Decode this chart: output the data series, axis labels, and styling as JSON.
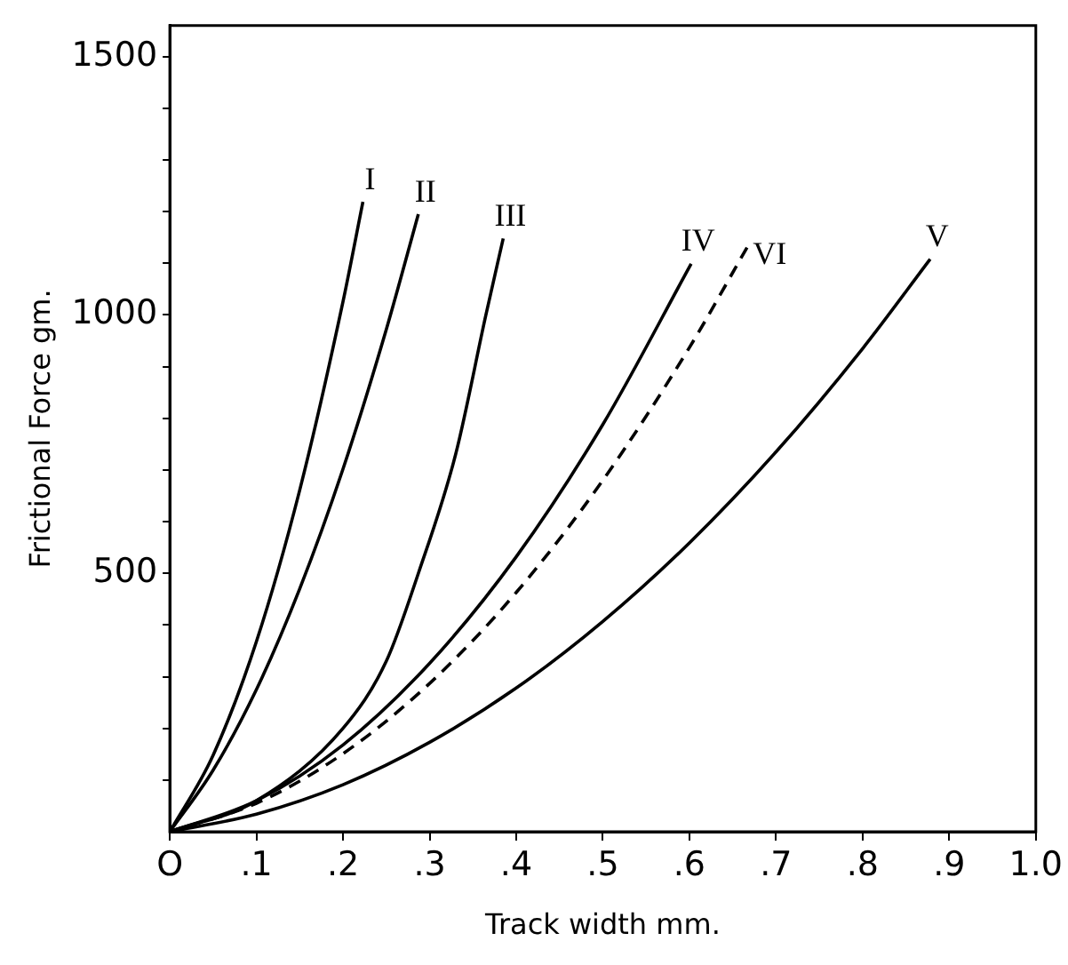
{
  "chart_data": {
    "type": "line",
    "xlabel": "Track width mm.",
    "ylabel": "Frictional Force gm.",
    "xlim": [
      0,
      1.0
    ],
    "ylim": [
      0,
      1560
    ],
    "xticks": [
      {
        "value": 0,
        "label": "O"
      },
      {
        "value": 0.1,
        "label": ".1"
      },
      {
        "value": 0.2,
        "label": ".2"
      },
      {
        "value": 0.3,
        "label": ".3"
      },
      {
        "value": 0.4,
        "label": ".4"
      },
      {
        "value": 0.5,
        "label": ".5"
      },
      {
        "value": 0.6,
        "label": ".6"
      },
      {
        "value": 0.7,
        "label": ".7"
      },
      {
        "value": 0.8,
        "label": ".8"
      },
      {
        "value": 0.9,
        "label": ".9"
      },
      {
        "value": 1.0,
        "label": "1.0"
      }
    ],
    "yticks": [
      {
        "value": 100,
        "label": null
      },
      {
        "value": 200,
        "label": null
      },
      {
        "value": 300,
        "label": null
      },
      {
        "value": 400,
        "label": null
      },
      500,
      {
        "value": 600,
        "label": null
      },
      {
        "value": 700,
        "label": null
      },
      {
        "value": 800,
        "label": null
      },
      {
        "value": 900,
        "label": null
      },
      1000,
      {
        "value": 1100,
        "label": null
      },
      {
        "value": 1200,
        "label": null
      },
      {
        "value": 1300,
        "label": null
      },
      {
        "value": 1400,
        "label": null
      },
      1500
    ],
    "grid": false,
    "legend": false,
    "marker": "none",
    "series": [
      {
        "name": "I",
        "color": "#000000",
        "line_style": "solid",
        "x": [
          0,
          0.05,
          0.1,
          0.15,
          0.2,
          0.223
        ],
        "values": [
          0,
          148,
          368,
          661,
          1026,
          1219
        ]
      },
      {
        "name": "II",
        "color": "#000000",
        "line_style": "solid",
        "x": [
          0,
          0.05,
          0.1,
          0.15,
          0.2,
          0.25,
          0.287
        ],
        "values": [
          0,
          119,
          275,
          470,
          702,
          972,
          1195
        ]
      },
      {
        "name": "III",
        "color": "#000000",
        "line_style": "solid",
        "x": [
          0,
          0.1,
          0.2,
          0.25,
          0.287,
          0.33,
          0.365,
          0.385
        ],
        "values": [
          0,
          60,
          200,
          330,
          500,
          730,
          1000,
          1148
        ]
      },
      {
        "name": "IV",
        "color": "#000000",
        "line_style": "solid",
        "x": [
          0,
          0.1,
          0.2,
          0.3,
          0.4,
          0.5,
          0.602
        ],
        "values": [
          0,
          60,
          168,
          326,
          532,
          788,
          1099
        ]
      },
      {
        "name": "VI",
        "color": "#000000",
        "line_style": "dashed",
        "x": [
          0,
          0.1,
          0.2,
          0.3,
          0.4,
          0.5,
          0.6,
          0.667
        ],
        "values": [
          0,
          55,
          151,
          287,
          463,
          680,
          937,
          1132
        ]
      },
      {
        "name": "V",
        "color": "#000000",
        "line_style": "solid",
        "x": [
          0,
          0.1,
          0.2,
          0.3,
          0.4,
          0.5,
          0.6,
          0.7,
          0.8,
          0.878
        ],
        "values": [
          0,
          34,
          91,
          173,
          278,
          407,
          559,
          735,
          935,
          1108
        ]
      }
    ]
  }
}
